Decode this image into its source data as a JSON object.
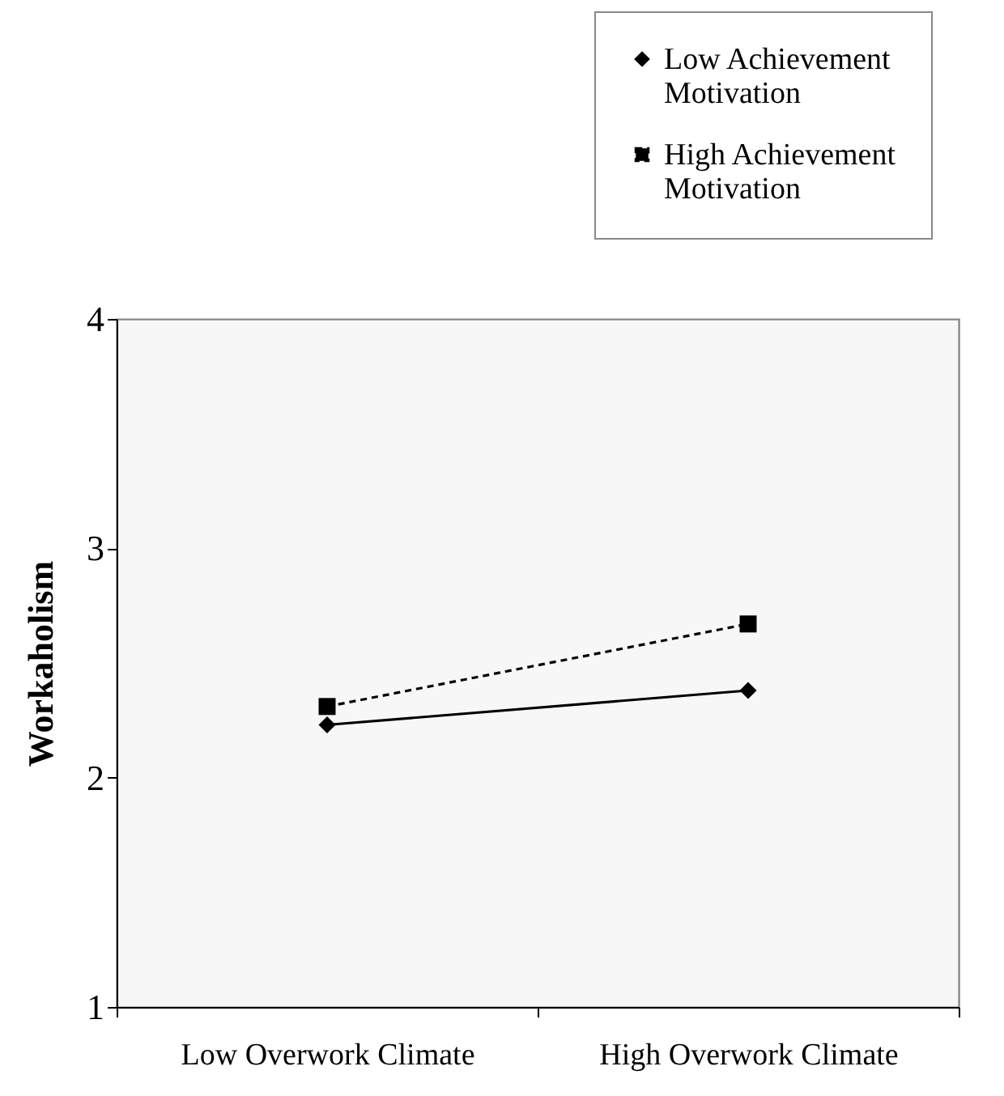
{
  "chart_data": {
    "type": "line",
    "ylabel": "Workaholism",
    "categories": [
      "Low Overwork Climate",
      "High Overwork Climate"
    ],
    "series": [
      {
        "name": "Low Achievement Motivation",
        "color": "#000000",
        "values": [
          2.23,
          2.38
        ],
        "marker": "diamond",
        "line_style": "solid"
      },
      {
        "name": "High Achievement Motivation",
        "color": "#000000",
        "values": [
          2.31,
          2.67
        ],
        "marker": "square",
        "line_style": "dashed"
      }
    ],
    "ylim": [
      1,
      4
    ],
    "yticks": [
      1,
      2,
      3,
      4
    ],
    "grid": false,
    "legend": "top right"
  }
}
